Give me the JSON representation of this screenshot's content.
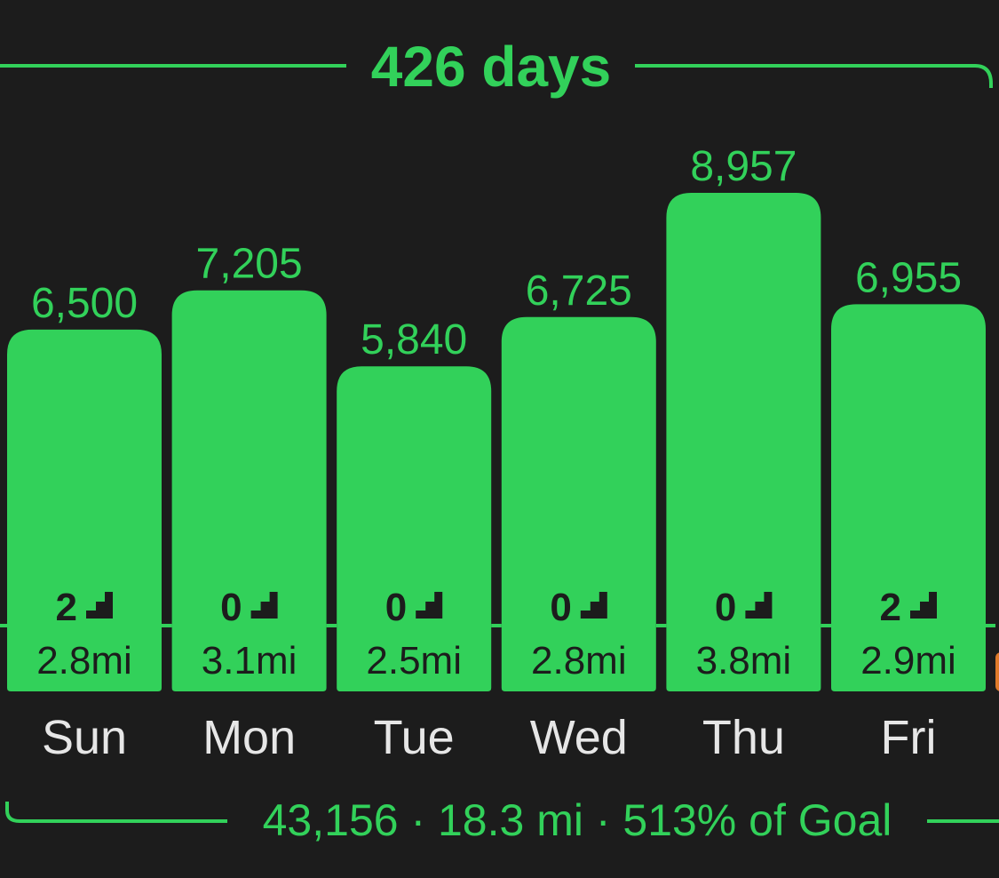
{
  "header": {
    "streak": "426 days"
  },
  "chart_data": {
    "type": "bar",
    "categories": [
      "Sun",
      "Mon",
      "Tue",
      "Wed",
      "Thu",
      "Fri"
    ],
    "values": [
      6500,
      7205,
      5840,
      6725,
      8957,
      6955
    ],
    "value_labels": [
      "6,500",
      "7,205",
      "5,840",
      "6,725",
      "8,957",
      "6,955"
    ],
    "floors": [
      "2",
      "0",
      "0",
      "0",
      "0",
      "2"
    ],
    "distances": [
      "2.8mi",
      "3.1mi",
      "2.5mi",
      "2.8mi",
      "3.8mi",
      "2.9mi"
    ],
    "goal_line": true,
    "grid": false,
    "legend": "none"
  },
  "footer": {
    "summary": "43,156 · 18.3 mi · 513% of Goal"
  },
  "colors": {
    "background": "#1c1c1c",
    "accent_green": "#32d15a",
    "bar_text": "#1c1c1c",
    "day_label": "#e6e6e6",
    "partial_bar": "#e07a2a"
  },
  "icons": {
    "floors": "stairs-icon"
  }
}
